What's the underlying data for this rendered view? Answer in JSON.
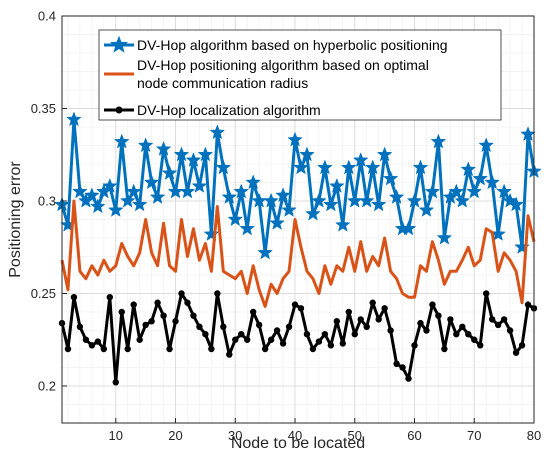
{
  "chart_data": {
    "type": "line",
    "title": "",
    "xlabel": "Node to be located",
    "ylabel": "Positioning error",
    "xlim": [
      1,
      80
    ],
    "ylim": [
      0.18,
      0.4
    ],
    "xticks": [
      10,
      20,
      30,
      40,
      50,
      60,
      70,
      80
    ],
    "yticks": [
      0.2,
      0.25,
      0.3,
      0.35,
      0.4
    ],
    "ytick_labels": [
      "0.2",
      "0.25",
      "0.3",
      "0.35",
      "0.4"
    ],
    "grid": true,
    "minor_grid": true,
    "legend_position": "top",
    "series": [
      {
        "name": "DV-Hop algorithm based on hyperbolic positioning",
        "color": "#0072BD",
        "marker": "star",
        "x": [
          1,
          2,
          3,
          4,
          5,
          6,
          7,
          8,
          9,
          10,
          11,
          12,
          13,
          14,
          15,
          16,
          17,
          18,
          19,
          20,
          21,
          22,
          23,
          24,
          25,
          26,
          27,
          28,
          29,
          30,
          31,
          32,
          33,
          34,
          35,
          36,
          37,
          38,
          39,
          40,
          41,
          42,
          43,
          44,
          45,
          46,
          47,
          48,
          49,
          50,
          51,
          52,
          53,
          54,
          55,
          56,
          57,
          58,
          59,
          60,
          61,
          62,
          63,
          64,
          65,
          66,
          67,
          68,
          69,
          70,
          71,
          72,
          73,
          74,
          75,
          76,
          77,
          78,
          79,
          80
        ],
        "values": [
          0.298,
          0.287,
          0.344,
          0.305,
          0.3,
          0.303,
          0.297,
          0.305,
          0.308,
          0.295,
          0.332,
          0.3,
          0.305,
          0.298,
          0.33,
          0.31,
          0.302,
          0.328,
          0.315,
          0.305,
          0.325,
          0.305,
          0.322,
          0.308,
          0.325,
          0.282,
          0.337,
          0.318,
          0.302,
          0.29,
          0.305,
          0.285,
          0.31,
          0.3,
          0.272,
          0.3,
          0.288,
          0.303,
          0.295,
          0.333,
          0.318,
          0.325,
          0.293,
          0.3,
          0.318,
          0.298,
          0.308,
          0.287,
          0.318,
          0.3,
          0.322,
          0.3,
          0.318,
          0.298,
          0.325,
          0.312,
          0.302,
          0.285,
          0.285,
          0.3,
          0.318,
          0.295,
          0.305,
          0.332,
          0.28,
          0.302,
          0.305,
          0.3,
          0.317,
          0.305,
          0.312,
          0.33,
          0.31,
          0.282,
          0.305,
          0.3,
          0.298,
          0.275,
          0.336,
          0.316
        ]
      },
      {
        "name": "DV-Hop positioning algorithm based on optimal node communication radius",
        "color": "#D95319",
        "marker": "none",
        "x": [
          1,
          2,
          3,
          4,
          5,
          6,
          7,
          8,
          9,
          10,
          11,
          12,
          13,
          14,
          15,
          16,
          17,
          18,
          19,
          20,
          21,
          22,
          23,
          24,
          25,
          26,
          27,
          28,
          29,
          30,
          31,
          32,
          33,
          34,
          35,
          36,
          37,
          38,
          39,
          40,
          41,
          42,
          43,
          44,
          45,
          46,
          47,
          48,
          49,
          50,
          51,
          52,
          53,
          54,
          55,
          56,
          57,
          58,
          59,
          60,
          61,
          62,
          63,
          64,
          65,
          66,
          67,
          68,
          69,
          70,
          71,
          72,
          73,
          74,
          75,
          76,
          77,
          78,
          79,
          80
        ],
        "values": [
          0.268,
          0.252,
          0.3,
          0.262,
          0.258,
          0.265,
          0.26,
          0.268,
          0.262,
          0.265,
          0.277,
          0.27,
          0.265,
          0.272,
          0.29,
          0.272,
          0.265,
          0.288,
          0.265,
          0.262,
          0.29,
          0.27,
          0.285,
          0.268,
          0.277,
          0.262,
          0.297,
          0.262,
          0.26,
          0.258,
          0.262,
          0.25,
          0.265,
          0.252,
          0.243,
          0.255,
          0.25,
          0.258,
          0.262,
          0.29,
          0.275,
          0.262,
          0.258,
          0.25,
          0.265,
          0.255,
          0.265,
          0.262,
          0.275,
          0.262,
          0.278,
          0.262,
          0.27,
          0.265,
          0.28,
          0.262,
          0.258,
          0.25,
          0.248,
          0.248,
          0.265,
          0.262,
          0.278,
          0.268,
          0.255,
          0.262,
          0.262,
          0.268,
          0.275,
          0.265,
          0.268,
          0.285,
          0.283,
          0.262,
          0.272,
          0.268,
          0.262,
          0.245,
          0.292,
          0.278
        ]
      },
      {
        "name": "DV-Hop localization algorithm",
        "color": "#000000",
        "marker": "circle",
        "x": [
          1,
          2,
          3,
          4,
          5,
          6,
          7,
          8,
          9,
          10,
          11,
          12,
          13,
          14,
          15,
          16,
          17,
          18,
          19,
          20,
          21,
          22,
          23,
          24,
          25,
          26,
          27,
          28,
          29,
          30,
          31,
          32,
          33,
          34,
          35,
          36,
          37,
          38,
          39,
          40,
          41,
          42,
          43,
          44,
          45,
          46,
          47,
          48,
          49,
          50,
          51,
          52,
          53,
          54,
          55,
          56,
          57,
          58,
          59,
          60,
          61,
          62,
          63,
          64,
          65,
          66,
          67,
          68,
          69,
          70,
          71,
          72,
          73,
          74,
          75,
          76,
          77,
          78,
          79,
          80
        ],
        "values": [
          0.234,
          0.22,
          0.248,
          0.232,
          0.225,
          0.222,
          0.224,
          0.22,
          0.248,
          0.202,
          0.24,
          0.22,
          0.244,
          0.225,
          0.233,
          0.235,
          0.245,
          0.238,
          0.22,
          0.235,
          0.25,
          0.245,
          0.238,
          0.232,
          0.228,
          0.22,
          0.25,
          0.232,
          0.217,
          0.225,
          0.228,
          0.225,
          0.24,
          0.233,
          0.22,
          0.225,
          0.23,
          0.223,
          0.232,
          0.244,
          0.242,
          0.228,
          0.22,
          0.224,
          0.228,
          0.222,
          0.235,
          0.223,
          0.24,
          0.228,
          0.236,
          0.232,
          0.245,
          0.236,
          0.242,
          0.23,
          0.212,
          0.21,
          0.204,
          0.222,
          0.234,
          0.23,
          0.244,
          0.238,
          0.22,
          0.236,
          0.228,
          0.232,
          0.228,
          0.225,
          0.222,
          0.25,
          0.236,
          0.233,
          0.236,
          0.23,
          0.218,
          0.222,
          0.244,
          0.242
        ]
      }
    ]
  }
}
